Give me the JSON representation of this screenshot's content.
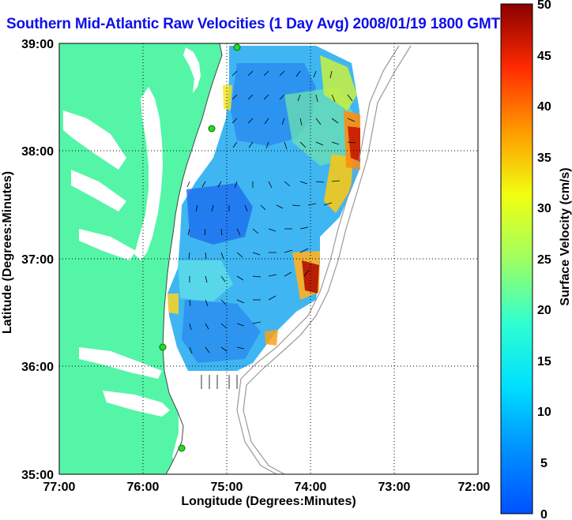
{
  "title": "Southern Mid-Atlantic Raw Velocities (1 Day Avg) 2008/01/19 1800 GMT",
  "chart_data": {
    "type": "heatmap",
    "xlabel": "Longitude (Degrees:Minutes)",
    "ylabel": "Latitude (Degrees:Minutes)",
    "x_ticks": [
      "77:00",
      "76:00",
      "75:00",
      "74:00",
      "73:00",
      "72:00"
    ],
    "y_ticks": [
      "39:00",
      "38:00",
      "37:00",
      "36:00",
      "35:00"
    ],
    "xlim": [
      -77,
      -72
    ],
    "ylim": [
      35,
      39
    ],
    "grid": true,
    "colorbar": {
      "label": "Surface Velocity (cm/s)",
      "range": [
        0,
        50
      ],
      "ticks": [
        "50",
        "45",
        "40",
        "35",
        "30",
        "25",
        "20",
        "15",
        "10",
        "5",
        "0"
      ]
    },
    "colors": {
      "land": "#55f5a8",
      "title": "#1010e8"
    }
  }
}
